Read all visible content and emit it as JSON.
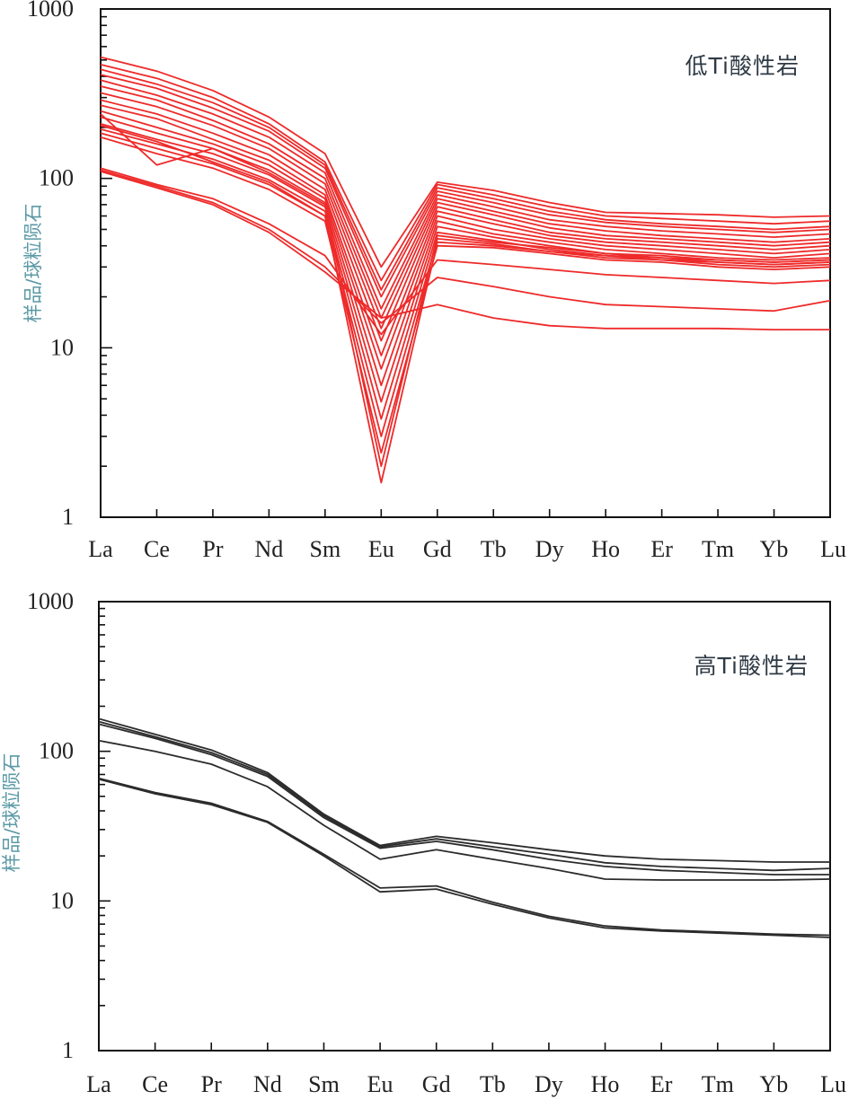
{
  "chart_data": [
    {
      "type": "line",
      "title": "低Ti酸性岩",
      "ylabel": "样品/球粒陨石",
      "xlabel": "",
      "yscale": "log",
      "ylim": [
        1,
        1000
      ],
      "yticks": [
        "1",
        "10",
        "100",
        "1000"
      ],
      "categories": [
        "La",
        "Ce",
        "Pr",
        "Nd",
        "Sm",
        "Eu",
        "Gd",
        "Tb",
        "Dy",
        "Ho",
        "Er",
        "Tm",
        "Yb",
        "Lu"
      ],
      "line_color": "#ee2a2a",
      "grid": false,
      "series": [
        {
          "values": [
            520,
            430,
            330,
            230,
            140,
            30,
            95,
            85,
            72,
            63,
            62,
            61,
            59,
            60
          ]
        },
        {
          "values": [
            470,
            390,
            300,
            210,
            125,
            25,
            92,
            80,
            68,
            60,
            58,
            56,
            54,
            56
          ]
        },
        {
          "values": [
            440,
            360,
            280,
            200,
            120,
            22,
            88,
            76,
            64,
            57,
            54,
            52,
            50,
            52
          ]
        },
        {
          "values": [
            410,
            340,
            260,
            190,
            115,
            20,
            84,
            72,
            61,
            55,
            52,
            50,
            48,
            50
          ]
        },
        {
          "values": [
            380,
            310,
            240,
            175,
            108,
            17,
            80,
            68,
            57,
            52,
            49,
            47,
            45,
            47
          ]
        },
        {
          "values": [
            350,
            290,
            220,
            160,
            100,
            15,
            76,
            64,
            54,
            49,
            46,
            44,
            42,
            44
          ]
        },
        {
          "values": [
            320,
            265,
            205,
            150,
            93,
            13,
            72,
            61,
            51,
            46,
            44,
            42,
            40,
            42
          ]
        },
        {
          "values": [
            290,
            240,
            185,
            138,
            86,
            11,
            68,
            57,
            48,
            44,
            42,
            40,
            38,
            40
          ]
        },
        {
          "values": [
            270,
            225,
            170,
            128,
            80,
            9,
            64,
            54,
            46,
            42,
            40,
            38,
            36,
            38
          ]
        },
        {
          "values": [
            250,
            200,
            160,
            120,
            76,
            7.5,
            60,
            50,
            44,
            40,
            38,
            36,
            34,
            36
          ]
        },
        {
          "values": [
            230,
            185,
            150,
            112,
            72,
            6,
            56,
            47,
            42,
            38,
            36,
            34,
            33,
            34
          ]
        },
        {
          "values": [
            210,
            170,
            140,
            105,
            68,
            4.8,
            52,
            45,
            40,
            36,
            35,
            33,
            32,
            33
          ]
        },
        {
          "values": [
            195,
            160,
            130,
            98,
            64,
            3.8,
            48,
            43,
            38,
            35,
            34,
            32,
            31,
            32
          ]
        },
        {
          "values": [
            185,
            150,
            122,
            92,
            60,
            3,
            44,
            41,
            37,
            34,
            33,
            31,
            30,
            31
          ]
        },
        {
          "values": [
            175,
            140,
            115,
            86,
            56,
            2.4,
            40,
            39,
            36,
            33,
            32,
            30,
            29,
            30
          ]
        },
        {
          "values": [
            240,
            120,
            150,
            108,
            70,
            2,
            46,
            42,
            39,
            36,
            34,
            33,
            32,
            33
          ]
        },
        {
          "values": [
            205,
            165,
            125,
            95,
            60,
            1.6,
            42,
            40,
            37,
            35,
            33,
            32,
            31,
            32
          ]
        },
        {
          "values": [
            115,
            92,
            76,
            54,
            35,
            12,
            33,
            31,
            29,
            27,
            26,
            25,
            24,
            25
          ]
        },
        {
          "values": [
            112,
            90,
            72,
            50,
            30,
            14,
            26,
            23,
            20,
            18,
            17.5,
            17,
            16.5,
            19
          ]
        },
        {
          "values": [
            110,
            88,
            70,
            48,
            28,
            15,
            18,
            15,
            13.5,
            13,
            13,
            13,
            12.8,
            12.8
          ]
        }
      ]
    },
    {
      "type": "line",
      "title": "高Ti酸性岩",
      "ylabel": "样品/球粒陨石",
      "xlabel": "",
      "yscale": "log",
      "ylim": [
        1,
        1000
      ],
      "yticks": [
        "1",
        "10",
        "100",
        "1000"
      ],
      "categories": [
        "La",
        "Ce",
        "Pr",
        "Nd",
        "Sm",
        "Eu",
        "Gd",
        "Tb",
        "Dy",
        "Ho",
        "Er",
        "Tm",
        "Yb",
        "Lu"
      ],
      "line_color": "#2b2b2b",
      "grid": false,
      "series": [
        {
          "values": [
            165,
            130,
            102,
            72,
            38,
            23.5,
            27,
            24.5,
            22,
            20,
            19,
            18.6,
            18.2,
            18.2
          ]
        },
        {
          "values": [
            158,
            125,
            98,
            70,
            37,
            23,
            26,
            23,
            20.5,
            18,
            17,
            16.5,
            16,
            16.5
          ]
        },
        {
          "values": [
            152,
            122,
            95,
            68,
            36,
            22.5,
            25,
            22,
            19,
            17,
            16,
            15.5,
            15,
            15
          ]
        },
        {
          "values": [
            118,
            100,
            82,
            58,
            32,
            19,
            22,
            19,
            16.5,
            14,
            13.8,
            13.8,
            13.8,
            14
          ]
        },
        {
          "values": [
            66,
            53,
            45,
            34,
            20.5,
            12.2,
            12.6,
            9.8,
            7.9,
            6.8,
            6.4,
            6.2,
            6.0,
            5.9
          ]
        },
        {
          "values": [
            65,
            52,
            44,
            33.5,
            20,
            11.5,
            12,
            9.5,
            7.7,
            6.6,
            6.3,
            6.1,
            5.9,
            5.7
          ]
        }
      ]
    }
  ]
}
